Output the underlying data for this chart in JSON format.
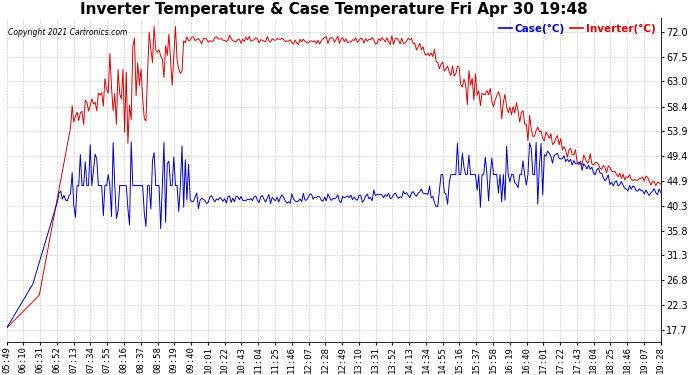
{
  "title": "Inverter Temperature & Case Temperature Fri Apr 30 19:48",
  "copyright": "Copyright 2021 Cartronics.com",
  "legend_case": "Case(°C)",
  "legend_inverter": "Inverter(°C)",
  "yticks": [
    17.7,
    22.3,
    26.8,
    31.3,
    35.8,
    40.3,
    44.9,
    49.4,
    53.9,
    58.4,
    63.0,
    67.5,
    72.0
  ],
  "ymin": 15.5,
  "ymax": 74.5,
  "bg_color": "#ffffff",
  "case_color": "#dd0000",
  "inverter_color": "#0000cc",
  "grid_color": "#bbbbbb",
  "title_fontsize": 11,
  "tick_fontsize": 7,
  "xtick_labels": [
    "05:49",
    "06:10",
    "06:31",
    "06:52",
    "07:13",
    "07:34",
    "07:55",
    "08:16",
    "08:37",
    "08:58",
    "09:19",
    "09:40",
    "10:01",
    "10:22",
    "10:43",
    "11:04",
    "11:25",
    "11:46",
    "12:07",
    "12:28",
    "12:49",
    "13:10",
    "13:31",
    "13:52",
    "14:13",
    "14:34",
    "14:55",
    "15:16",
    "15:37",
    "15:58",
    "16:19",
    "16:40",
    "17:01",
    "17:22",
    "17:43",
    "18:04",
    "18:25",
    "18:46",
    "19:07",
    "19:28"
  ]
}
